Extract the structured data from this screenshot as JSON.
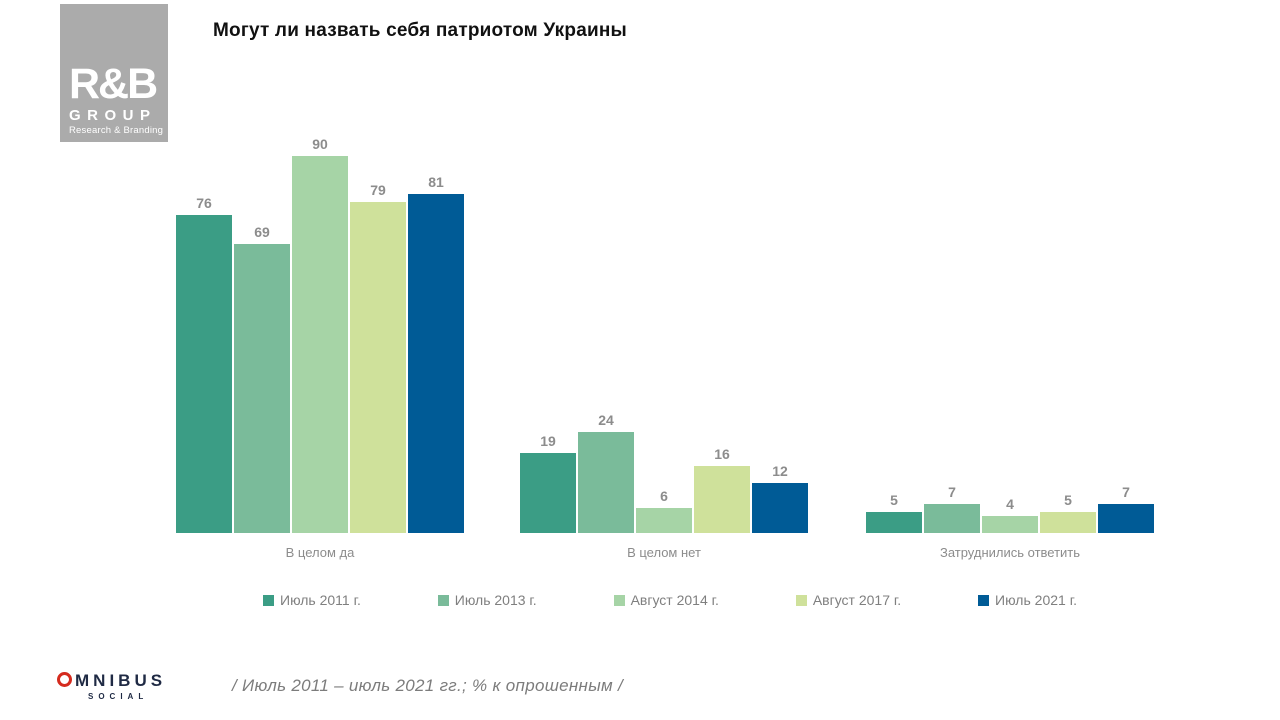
{
  "logo_rb": {
    "name": "R&B",
    "group_label": "GROUP",
    "subtitle": "Research & Branding"
  },
  "chart_data": {
    "type": "bar",
    "title": "Могут ли назвать себя патриотом Украины",
    "categories": [
      "В целом да",
      "В целом нет",
      "Затруднились ответить"
    ],
    "series": [
      {
        "name": "Июль 2011 г.",
        "color": "#3b9d85",
        "values": [
          76,
          19,
          5
        ]
      },
      {
        "name": "Июль 2013 г.",
        "color": "#7abb9a",
        "values": [
          69,
          24,
          7
        ]
      },
      {
        "name": "Август 2014 г.",
        "color": "#a6d4a6",
        "values": [
          90,
          6,
          4
        ]
      },
      {
        "name": "Август 2017 г.",
        "color": "#cfe19b",
        "values": [
          79,
          16,
          5
        ]
      },
      {
        "name": "Июль 2021 г.",
        "color": "#005b96",
        "values": [
          81,
          12,
          7
        ]
      }
    ],
    "ylim": [
      0,
      100
    ],
    "value_labels": true,
    "grid": false,
    "legend_position": "bottom"
  },
  "footer": {
    "omnibus_text": "MNIBUS",
    "omnibus_subtitle": "SOCIAL",
    "caption": "/ Июль 2011 – июль 2021 гг.; % к опрошенным /"
  }
}
